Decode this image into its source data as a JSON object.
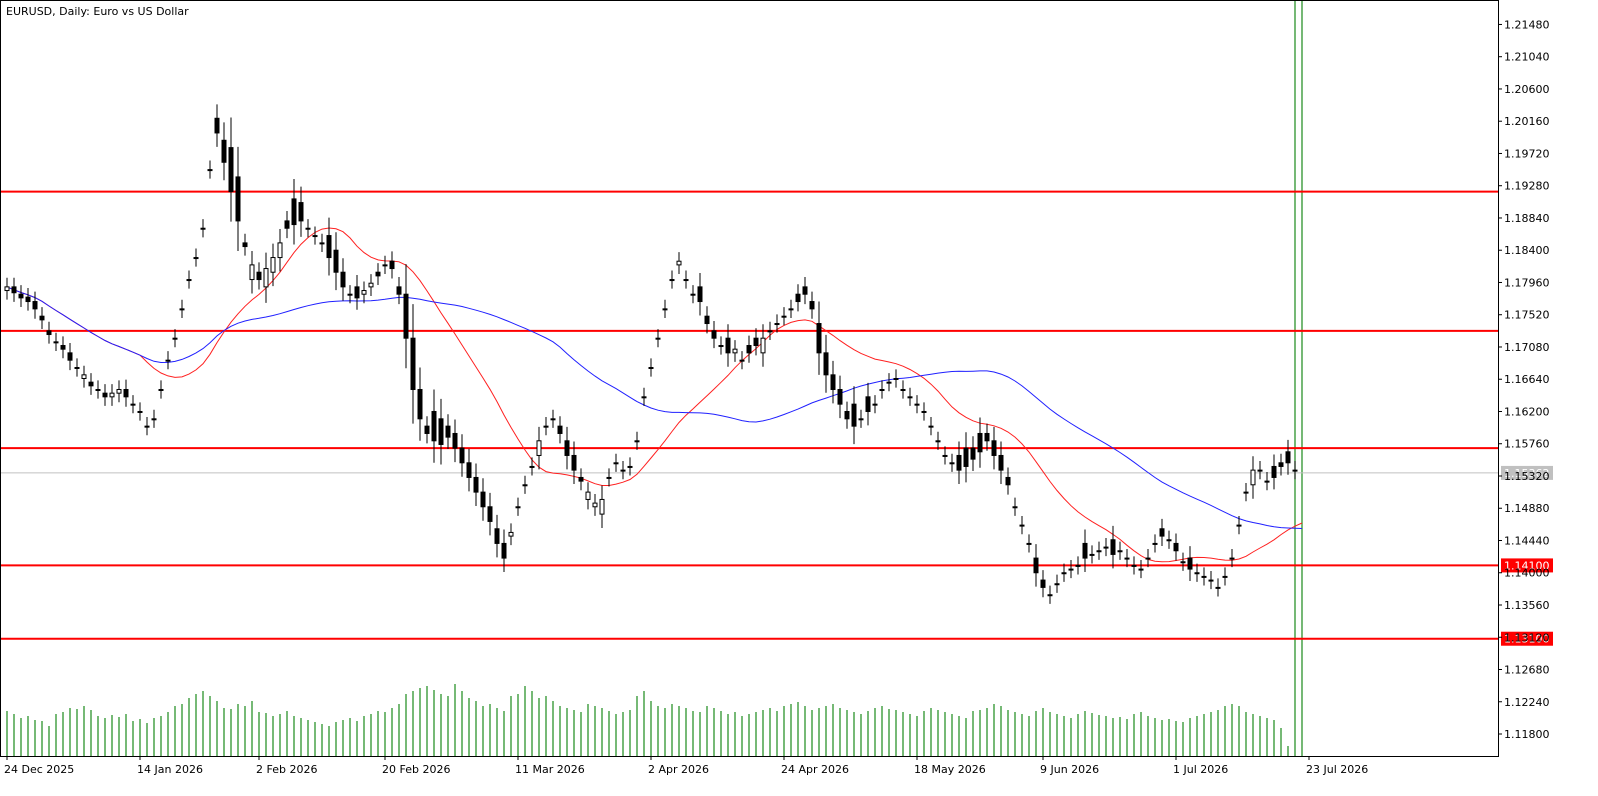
{
  "chart_title": "EURUSD, Daily:  Euro vs US Dollar",
  "current_price_label": "1.15362",
  "colors": {
    "background": "#ffffff",
    "candle": "#000000",
    "volume": "#1a8a1a",
    "sma_fast": "#ff2020",
    "sma_slow": "#2020ff",
    "level": "#ff0000",
    "current_line": "#c0c0c0",
    "current_badge": "#c0c0c0"
  },
  "chart_data": {
    "type": "candlestick",
    "y_range": [
      1.115,
      1.218
    ],
    "y_ticks": [
      "1.21480",
      "1.21040",
      "1.20600",
      "1.20160",
      "1.19720",
      "1.19280",
      "1.18840",
      "1.18400",
      "1.17960",
      "1.17520",
      "1.17080",
      "1.16640",
      "1.16200",
      "1.15760",
      "1.15320",
      "1.14880",
      "1.14440",
      "1.14000",
      "1.13560",
      "1.13120",
      "1.12680",
      "1.12240",
      "1.11800"
    ],
    "x_labels": [
      "24 Dec 2025",
      "14 Jan 2026",
      "2 Feb 2026",
      "20 Feb 2026",
      "11 Mar 2026",
      "2 Apr 2026",
      "24 Apr 2026",
      "18 May 2026",
      "9 Jun 2026",
      "1 Jul 2026",
      "23 Jul 2026"
    ],
    "x_label_bars": [
      0,
      19,
      36,
      54,
      73,
      92,
      111,
      130,
      148,
      167,
      186
    ],
    "horizontal_levels": [
      {
        "price": 1.192,
        "label": ""
      },
      {
        "price": 1.173,
        "label": ""
      },
      {
        "price": 1.157,
        "label": ""
      },
      {
        "price": 1.141,
        "label": "1.14100"
      },
      {
        "price": 1.131,
        "label": "1.13100"
      }
    ],
    "current_price": 1.15362,
    "close": [
      1.179,
      1.1782,
      1.1775,
      1.177,
      1.176,
      1.1745,
      1.1725,
      1.1715,
      1.1705,
      1.169,
      1.168,
      1.167,
      1.1655,
      1.165,
      1.164,
      1.1645,
      1.165,
      1.164,
      1.163,
      1.162,
      1.16,
      1.161,
      1.165,
      1.169,
      1.172,
      1.176,
      1.18,
      1.183,
      1.187,
      1.195,
      1.2,
      1.196,
      1.192,
      1.188,
      1.1845,
      1.182,
      1.18,
      1.1815,
      1.183,
      1.185,
      1.187,
      1.1875,
      1.188,
      1.187,
      1.186,
      1.185,
      1.183,
      1.181,
      1.179,
      1.178,
      1.1775,
      1.1785,
      1.1795,
      1.1805,
      1.182,
      1.1815,
      1.178,
      1.172,
      1.165,
      1.161,
      1.159,
      1.158,
      1.1575,
      1.1585,
      1.157,
      1.155,
      1.153,
      1.151,
      1.149,
      1.147,
      1.144,
      1.142,
      1.1455,
      1.149,
      1.152,
      1.1545,
      1.158,
      1.16,
      1.161,
      1.159,
      1.156,
      1.154,
      1.1525,
      1.151,
      1.1495,
      1.15,
      1.153,
      1.155,
      1.154,
      1.1545,
      1.158,
      1.164,
      1.168,
      1.172,
      1.176,
      1.18,
      1.1825,
      1.18,
      1.178,
      1.177,
      1.174,
      1.172,
      1.171,
      1.17,
      1.1705,
      1.169,
      1.17,
      1.171,
      1.172,
      1.173,
      1.174,
      1.175,
      1.176,
      1.177,
      1.178,
      1.176,
      1.17,
      1.167,
      1.165,
      1.163,
      1.161,
      1.16,
      1.161,
      1.162,
      1.163,
      1.165,
      1.166,
      1.1665,
      1.165,
      1.164,
      1.163,
      1.162,
      1.16,
      1.158,
      1.156,
      1.155,
      1.154,
      1.1545,
      1.1555,
      1.1565,
      1.158,
      1.156,
      1.154,
      1.152,
      1.149,
      1.1465,
      1.144,
      1.14,
      1.138,
      1.137,
      1.1385,
      1.14,
      1.1405,
      1.141,
      1.142,
      1.1425,
      1.143,
      1.1435,
      1.1425,
      1.143,
      1.142,
      1.141,
      1.1405,
      1.142,
      1.144,
      1.145,
      1.1445,
      1.143,
      1.1415,
      1.1405,
      1.14,
      1.1395,
      1.139,
      1.138,
      1.1395,
      1.142,
      1.1465,
      1.151,
      1.154,
      1.154,
      1.1525,
      1.153,
      1.1545,
      1.155,
      1.154,
      1.1536
    ],
    "series": [
      {
        "key": "open",
        "values": [
          1.1785,
          1.179,
          1.178,
          1.1776,
          1.177,
          1.175,
          1.173,
          1.1715,
          1.171,
          1.17,
          1.168,
          1.1665,
          1.166,
          1.165,
          1.1645,
          1.164,
          1.1645,
          1.165,
          1.163,
          1.162,
          1.16,
          1.161,
          1.165,
          1.169,
          1.172,
          1.176,
          1.18,
          1.183,
          1.187,
          1.195,
          1.202,
          1.199,
          1.198,
          1.194,
          1.185,
          1.18,
          1.181,
          1.179,
          1.181,
          1.183,
          1.188,
          1.191,
          1.1905,
          1.187,
          1.186,
          1.185,
          1.186,
          1.184,
          1.181,
          1.178,
          1.179,
          1.178,
          1.179,
          1.181,
          1.182,
          1.1825,
          1.179,
          1.178,
          1.172,
          1.165,
          1.16,
          1.162,
          1.161,
          1.16,
          1.159,
          1.157,
          1.155,
          1.153,
          1.151,
          1.149,
          1.146,
          1.144,
          1.145,
          1.149,
          1.152,
          1.1545,
          1.156,
          1.16,
          1.161,
          1.16,
          1.158,
          1.156,
          1.153,
          1.15,
          1.149,
          1.148,
          1.153,
          1.155,
          1.154,
          1.1545,
          1.158,
          1.164,
          1.168,
          1.172,
          1.176,
          1.18,
          1.182,
          1.18,
          1.178,
          1.179,
          1.175,
          1.173,
          1.171,
          1.172,
          1.17,
          1.169,
          1.171,
          1.172,
          1.17,
          1.173,
          1.174,
          1.175,
          1.176,
          1.178,
          1.179,
          1.177,
          1.174,
          1.17,
          1.167,
          1.165,
          1.162,
          1.163,
          1.161,
          1.164,
          1.163,
          1.165,
          1.166,
          1.1665,
          1.165,
          1.164,
          1.163,
          1.162,
          1.16,
          1.158,
          1.156,
          1.155,
          1.156,
          1.157,
          1.157,
          1.159,
          1.159,
          1.158,
          1.156,
          1.153,
          1.149,
          1.1465,
          1.144,
          1.142,
          1.139,
          1.137,
          1.1385,
          1.14,
          1.1405,
          1.141,
          1.144,
          1.1425,
          1.143,
          1.1435,
          1.1445,
          1.143,
          1.142,
          1.141,
          1.1405,
          1.142,
          1.144,
          1.146,
          1.1445,
          1.144,
          1.1415,
          1.142,
          1.14,
          1.1395,
          1.139,
          1.138,
          1.1395,
          1.142,
          1.1465,
          1.151,
          1.152,
          1.154,
          1.1525,
          1.1545,
          1.155,
          1.1565,
          1.154
        ]
      },
      {
        "key": "volume",
        "values": [
          0.45,
          0.42,
          0.38,
          0.4,
          0.36,
          0.35,
          0.3,
          0.42,
          0.44,
          0.48,
          0.47,
          0.5,
          0.46,
          0.4,
          0.38,
          0.41,
          0.39,
          0.42,
          0.35,
          0.37,
          0.33,
          0.38,
          0.4,
          0.44,
          0.5,
          0.52,
          0.58,
          0.62,
          0.65,
          0.6,
          0.55,
          0.48,
          0.47,
          0.52,
          0.5,
          0.55,
          0.44,
          0.43,
          0.4,
          0.42,
          0.45,
          0.4,
          0.38,
          0.36,
          0.34,
          0.32,
          0.3,
          0.34,
          0.36,
          0.38,
          0.35,
          0.4,
          0.42,
          0.45,
          0.44,
          0.48,
          0.52,
          0.62,
          0.65,
          0.68,
          0.7,
          0.66,
          0.62,
          0.6,
          0.72,
          0.65,
          0.58,
          0.55,
          0.5,
          0.52,
          0.48,
          0.45,
          0.6,
          0.62,
          0.7,
          0.65,
          0.58,
          0.6,
          0.55,
          0.5,
          0.48,
          0.46,
          0.44,
          0.52,
          0.5,
          0.48,
          0.45,
          0.42,
          0.44,
          0.46,
          0.6,
          0.65,
          0.55,
          0.5,
          0.48,
          0.52,
          0.5,
          0.48,
          0.45,
          0.44,
          0.5,
          0.48,
          0.45,
          0.42,
          0.44,
          0.4,
          0.42,
          0.44,
          0.46,
          0.48,
          0.45,
          0.5,
          0.52,
          0.54,
          0.5,
          0.46,
          0.48,
          0.5,
          0.52,
          0.48,
          0.46,
          0.44,
          0.42,
          0.45,
          0.48,
          0.5,
          0.47,
          0.46,
          0.44,
          0.42,
          0.4,
          0.45,
          0.48,
          0.46,
          0.44,
          0.42,
          0.4,
          0.38,
          0.45,
          0.46,
          0.48,
          0.52,
          0.5,
          0.46,
          0.44,
          0.42,
          0.4,
          0.45,
          0.48,
          0.44,
          0.42,
          0.4,
          0.38,
          0.42,
          0.45,
          0.43,
          0.41,
          0.4,
          0.38,
          0.39,
          0.37,
          0.42,
          0.44,
          0.4,
          0.38,
          0.36,
          0.37,
          0.35,
          0.34,
          0.38,
          0.4,
          0.42,
          0.44,
          0.46,
          0.5,
          0.52,
          0.5,
          0.44,
          0.42,
          0.4,
          0.38,
          0.36,
          0.28,
          0.1
        ]
      }
    ]
  }
}
